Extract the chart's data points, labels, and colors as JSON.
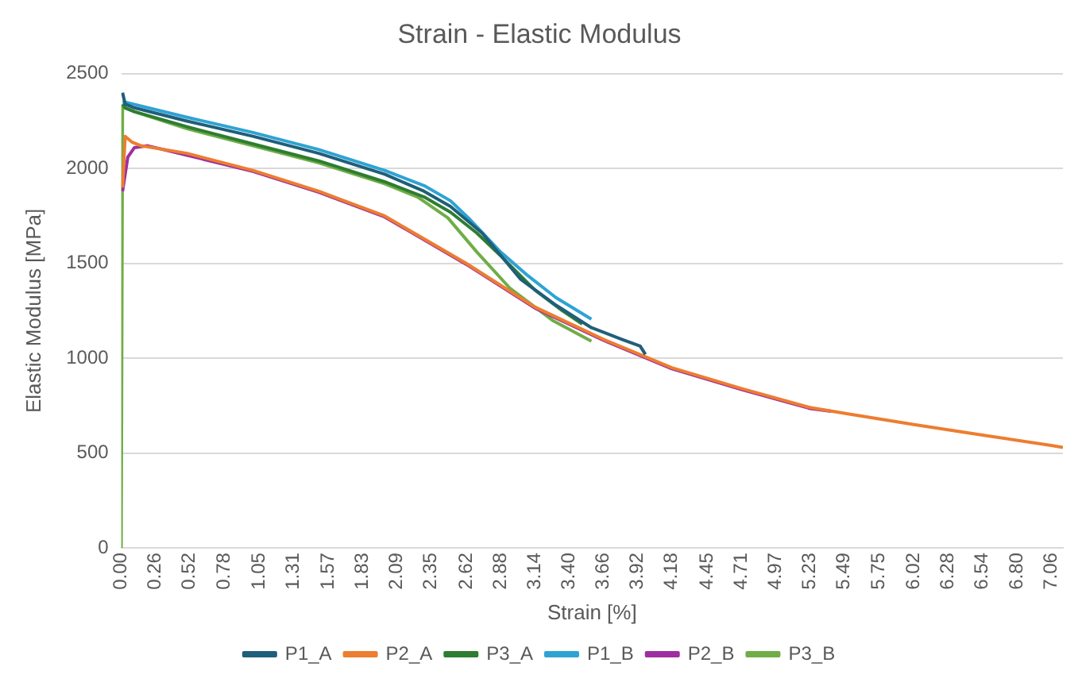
{
  "chart_data": {
    "type": "line",
    "title": "Strain - Elastic Modulus",
    "xlabel": "Strain [%]",
    "ylabel": "Elastic Modulus [MPa]",
    "xlim": [
      0,
      7.15
    ],
    "xticks": [
      "0.00",
      0.26,
      0.52,
      0.78,
      1.05,
      1.31,
      1.57,
      1.83,
      2.09,
      2.35,
      2.62,
      2.88,
      3.14,
      "3.40",
      3.66,
      3.92,
      4.18,
      4.45,
      4.71,
      4.97,
      5.23,
      5.49,
      5.75,
      6.02,
      6.28,
      6.54,
      "6.80",
      7.06
    ],
    "ylim": [
      0,
      2500
    ],
    "yticks": [
      0,
      500,
      1000,
      1500,
      2000,
      2500
    ],
    "grid": "y",
    "legend": "bottom",
    "marker": "none",
    "line_style": "solid",
    "series": [
      {
        "name": "P1_A",
        "color": "#1f5f7a",
        "x": [
          0.01,
          0.03,
          0.1,
          0.5,
          1.0,
          1.5,
          2.0,
          2.3,
          2.5,
          2.74,
          3.03,
          3.3,
          3.57,
          3.8,
          3.94,
          3.98
        ],
        "values": [
          2400,
          2340,
          2320,
          2250,
          2170,
          2080,
          1970,
          1880,
          1800,
          1660,
          1418,
          1280,
          1161,
          1100,
          1064,
          1020
        ]
      },
      {
        "name": "P2_A",
        "color": "#ed7d31",
        "x": [
          0.01,
          0.03,
          0.08,
          0.15,
          0.5,
          1.0,
          1.5,
          2.0,
          2.62,
          3.14,
          3.66,
          4.18,
          4.71,
          5.23,
          5.49,
          6.02,
          6.54,
          7.06,
          7.15
        ],
        "values": [
          1900,
          2170,
          2140,
          2120,
          2080,
          1990,
          1880,
          1750,
          1500,
          1270,
          1100,
          950,
          840,
          740,
          710,
          650,
          595,
          540,
          530
        ]
      },
      {
        "name": "P3_A",
        "color": "#2e7d32",
        "x": [
          0.01,
          0.03,
          0.1,
          0.5,
          1.0,
          1.5,
          2.0,
          2.3,
          2.5,
          2.7,
          2.88,
          3.14,
          3.35,
          3.5
        ],
        "values": [
          2340,
          2320,
          2300,
          2220,
          2130,
          2040,
          1930,
          1850,
          1770,
          1660,
          1540,
          1360,
          1250,
          1180
        ]
      },
      {
        "name": "P1_B",
        "color": "#2ea3d3",
        "x": [
          0.01,
          0.03,
          0.5,
          1.0,
          1.5,
          2.0,
          2.3,
          2.5,
          2.65,
          2.88,
          3.07,
          3.3,
          3.57
        ],
        "values": [
          2350,
          2350,
          2270,
          2190,
          2100,
          1990,
          1910,
          1830,
          1730,
          1560,
          1445,
          1320,
          1206
        ]
      },
      {
        "name": "P2_B",
        "color": "#9e2fa0",
        "x": [
          0.01,
          0.05,
          0.1,
          0.2,
          0.5,
          1.0,
          1.5,
          2.0,
          2.62,
          3.14,
          3.66,
          4.18,
          4.71,
          5.23,
          5.39
        ],
        "values": [
          1880,
          2060,
          2110,
          2120,
          2070,
          1985,
          1875,
          1745,
          1495,
          1265,
          1095,
          945,
          835,
          735,
          720
        ]
      },
      {
        "name": "P3_B",
        "color": "#70ad47",
        "x": [
          0,
          0.01,
          0.03,
          0.1,
          0.5,
          1.0,
          1.5,
          2.0,
          2.25,
          2.48,
          2.7,
          2.95,
          3.28,
          3.57
        ],
        "values": [
          0,
          2330,
          2320,
          2300,
          2210,
          2120,
          2030,
          1920,
          1850,
          1740,
          1560,
          1370,
          1197,
          1090
        ]
      }
    ]
  }
}
